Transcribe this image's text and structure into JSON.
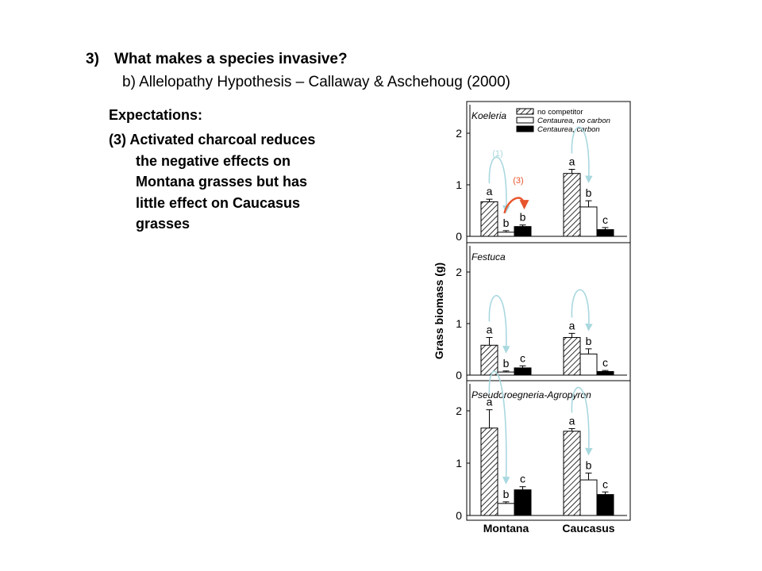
{
  "slide": {
    "heading_number": "3)",
    "heading_text": "What makes a species invasive?",
    "subheading": "b) Allelopathy Hypothesis – Callaway & Aschehoug (2000)",
    "expectations_title": "Expectations:",
    "expectation_lines": [
      "(3) Activated charcoal reduces",
      "the negative effects on",
      "Montana grasses but has",
      "little effect on Caucasus",
      "grasses"
    ]
  },
  "chart_data": {
    "type": "bar",
    "ylabel": "Grass biomass (g)",
    "categories": [
      "Montana",
      "Caucasus"
    ],
    "ylim": [
      0,
      2.5
    ],
    "yticks": [
      0,
      1,
      2
    ],
    "legend": {
      "placement": "top-right of first panel",
      "entries": [
        "no competitor",
        "Centaurea, no carbon",
        "Centaurea, carbon"
      ]
    },
    "panels": [
      {
        "title": "Koeleria",
        "series": [
          {
            "name": "no competitor",
            "values": [
              0.67,
              1.22
            ],
            "errors": [
              0.05,
              0.08
            ],
            "letters": [
              "a",
              "a"
            ]
          },
          {
            "name": "Centaurea, no carbon",
            "values": [
              0.08,
              0.57
            ],
            "errors": [
              0.03,
              0.12
            ],
            "letters": [
              "b",
              "b"
            ]
          },
          {
            "name": "Centaurea, carbon",
            "values": [
              0.19,
              0.13
            ],
            "errors": [
              0.03,
              0.04
            ],
            "letters": [
              "b",
              "c"
            ]
          }
        ]
      },
      {
        "title": "Festuca",
        "series": [
          {
            "name": "no competitor",
            "values": [
              0.58,
              0.73
            ],
            "errors": [
              0.15,
              0.08
            ],
            "letters": [
              "a",
              "a"
            ]
          },
          {
            "name": "Centaurea, no carbon",
            "values": [
              0.06,
              0.41
            ],
            "errors": [
              0.02,
              0.1
            ],
            "letters": [
              "b",
              "b"
            ]
          },
          {
            "name": "Centaurea, carbon",
            "values": [
              0.14,
              0.07
            ],
            "errors": [
              0.04,
              0.02
            ],
            "letters": [
              "c",
              "c"
            ]
          }
        ]
      },
      {
        "title": "Pseudoroegneria-Agropyron",
        "series": [
          {
            "name": "no competitor",
            "values": [
              1.67,
              1.61
            ],
            "errors": [
              0.35,
              0.05
            ],
            "letters": [
              "a",
              "a"
            ]
          },
          {
            "name": "Centaurea, no carbon",
            "values": [
              0.23,
              0.68
            ],
            "errors": [
              0.03,
              0.13
            ],
            "letters": [
              "b",
              "b"
            ]
          },
          {
            "name": "Centaurea, carbon",
            "values": [
              0.49,
              0.4
            ],
            "errors": [
              0.06,
              0.05
            ],
            "letters": [
              "c",
              "c"
            ]
          }
        ]
      }
    ],
    "annotations": [
      {
        "text": "(1)",
        "color": "#a9d8df"
      },
      {
        "text": "(3)",
        "color": "#e8552c"
      }
    ],
    "colors": {
      "bar_no_carbon": "#ffffff",
      "bar_carbon": "#000000",
      "arrow_light_blue": "#a9d8df",
      "arrow_red": "#e8552c"
    }
  }
}
